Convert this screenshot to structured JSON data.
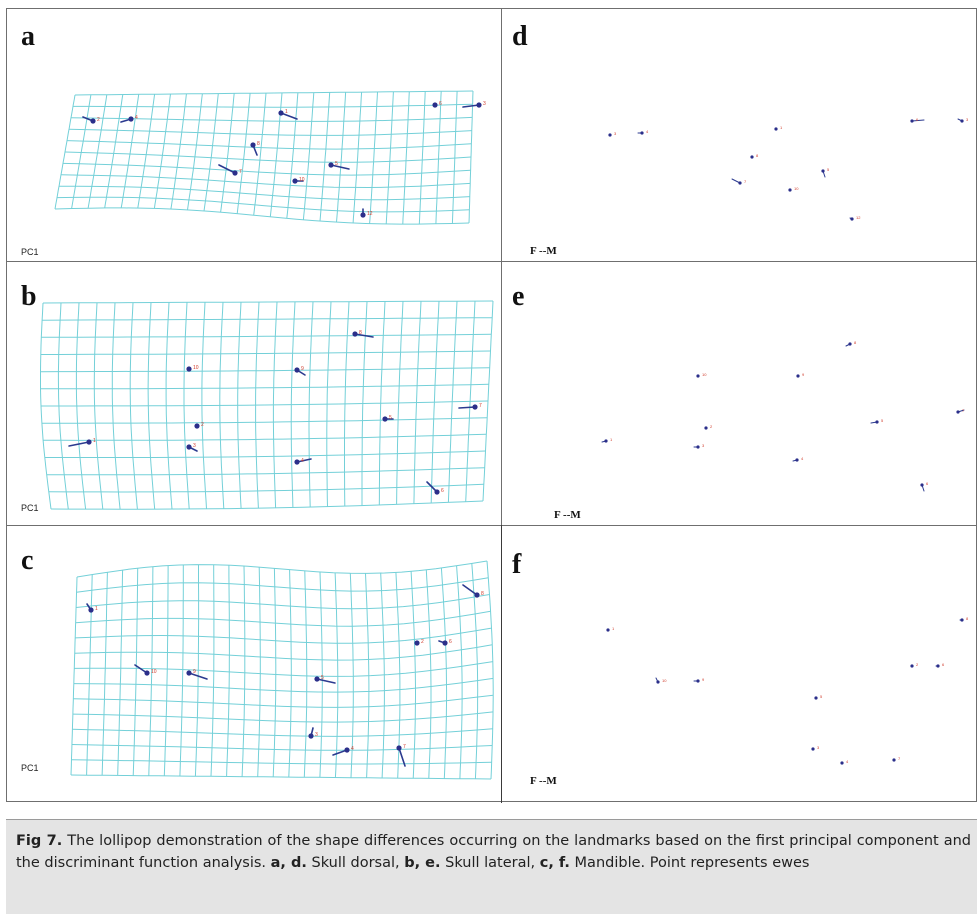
{
  "panels": {
    "a": {
      "letter": "a",
      "footer": "PC1"
    },
    "b": {
      "letter": "b",
      "footer": "PC1"
    },
    "c": {
      "letter": "c",
      "footer": "PC1"
    },
    "d": {
      "letter": "d",
      "footer": "F --M"
    },
    "e": {
      "letter": "e",
      "footer": "F --M"
    },
    "f": {
      "letter": "f",
      "footer": "F --M"
    }
  },
  "caption": {
    "fig_label": "Fig 7.",
    "text_1": " The lollipop demonstration of the shape differences occurring on the landmarks based on the first principal component and the discriminant function analysis. ",
    "ref_1": "a, d.",
    "text_2": " Skull dorsal, ",
    "ref_2": "b, e.",
    "text_3": " Skull lateral, ",
    "ref_3": "c, f.",
    "text_4": " Mandible. Point represents ewes"
  },
  "colors": {
    "grid": "#74d0d8",
    "lollipop_stick": "#2b3a8f",
    "lollipop_dot": "#2b2f8a",
    "landmark_number": "#d03a2a"
  }
}
